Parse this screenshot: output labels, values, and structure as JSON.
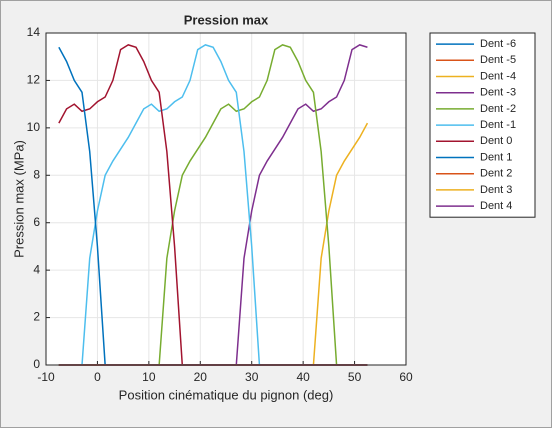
{
  "chart_data": {
    "type": "line",
    "title": "Pression max",
    "xlabel": "Position cinématique du pignon (deg)",
    "ylabel": "Pression max (MPa)",
    "xlim": [
      -10,
      60
    ],
    "xticks": [
      -10,
      0,
      10,
      20,
      30,
      40,
      50,
      60
    ],
    "ylim": [
      0,
      14
    ],
    "yticks": [
      0,
      2,
      4,
      6,
      8,
      10,
      12,
      14
    ],
    "grid": true,
    "legend": "outside-right",
    "series": [
      {
        "name": "Dent -6",
        "color": "#0072bd",
        "x": [
          -7.5,
          52.5
        ],
        "values": [
          0,
          0
        ]
      },
      {
        "name": "Dent -5",
        "color": "#d95319",
        "x": [
          -7.5,
          52.5
        ],
        "values": [
          0,
          0
        ]
      },
      {
        "name": "Dent -4",
        "color": "#edb120",
        "x": [
          -7.5,
          42,
          43.5,
          45,
          46.5,
          48,
          49.5,
          51,
          52.5
        ],
        "values": [
          0,
          0,
          4.5,
          6.5,
          8,
          8.6,
          9.1,
          9.6,
          10.2
        ]
      },
      {
        "name": "Dent -3",
        "color": "#7e2f8e",
        "x": [
          -7.5,
          27,
          28.5,
          30,
          31.5,
          33,
          34.5,
          36,
          37.5,
          39,
          40.5,
          42,
          43.5,
          45,
          46.5,
          48,
          49.5,
          51,
          52.5
        ],
        "values": [
          0,
          0,
          4.5,
          6.5,
          8,
          8.6,
          9.1,
          9.6,
          10.2,
          10.8,
          11,
          10.7,
          10.8,
          11.1,
          11.3,
          12,
          13.3,
          13.5,
          13.4
        ]
      },
      {
        "name": "Dent -2",
        "color": "#77ac30",
        "x": [
          -7.5,
          12,
          13.5,
          15,
          16.5,
          18,
          19.5,
          21,
          22.5,
          24,
          25.5,
          27,
          28.5,
          30,
          31.5,
          33,
          34.5,
          36,
          37.5,
          39,
          40.5,
          42,
          43.5,
          45,
          46.5,
          52.5
        ],
        "values": [
          0,
          0,
          4.5,
          6.5,
          8,
          8.6,
          9.1,
          9.6,
          10.2,
          10.8,
          11,
          10.7,
          10.8,
          11.1,
          11.3,
          12,
          13.3,
          13.5,
          13.4,
          12.8,
          12,
          11.5,
          9,
          5,
          0,
          0
        ]
      },
      {
        "name": "Dent -1",
        "color": "#4dbeee",
        "x": [
          -7.5,
          -3,
          -1.5,
          0,
          1.5,
          3,
          4.5,
          6,
          7.5,
          9,
          10.5,
          12,
          13.5,
          15,
          16.5,
          18,
          19.5,
          21,
          22.5,
          24,
          25.5,
          27,
          28.5,
          30,
          31.5,
          52.5
        ],
        "values": [
          0,
          0,
          4.5,
          6.5,
          8,
          8.6,
          9.1,
          9.6,
          10.2,
          10.8,
          11,
          10.7,
          10.8,
          11.1,
          11.3,
          12,
          13.3,
          13.5,
          13.4,
          12.8,
          12,
          11.5,
          9,
          5,
          0,
          0
        ]
      },
      {
        "name": "Dent 0",
        "color": "#a2142f",
        "x": [
          -7.5,
          -6,
          -4.5,
          -3,
          -1.5,
          0,
          1.5,
          3,
          4.5,
          6,
          7.5,
          9,
          10.5,
          12,
          13.5,
          15,
          16.5,
          52.5
        ],
        "values": [
          10.2,
          10.8,
          11,
          10.7,
          10.8,
          11.1,
          11.3,
          12,
          13.3,
          13.5,
          13.4,
          12.8,
          12,
          11.5,
          9,
          5,
          0,
          0
        ]
      },
      {
        "name": "Dent 1",
        "color": "#0072bd",
        "x": [
          -7.5,
          -6,
          -4.5,
          -3,
          -1.5,
          0,
          1.5,
          52.5
        ],
        "values": [
          13.4,
          12.8,
          12,
          11.5,
          9,
          5,
          0,
          0
        ]
      },
      {
        "name": "Dent 2",
        "color": "#d95319",
        "x": [
          -7.5,
          52.5
        ],
        "values": [
          0,
          0
        ]
      },
      {
        "name": "Dent 3",
        "color": "#edb120",
        "x": [
          -7.5,
          52.5
        ],
        "values": [
          0,
          0
        ]
      },
      {
        "name": "Dent 4",
        "color": "#7e2f8e",
        "x": [
          -7.5,
          52.5
        ],
        "values": [
          0,
          0
        ]
      }
    ]
  }
}
